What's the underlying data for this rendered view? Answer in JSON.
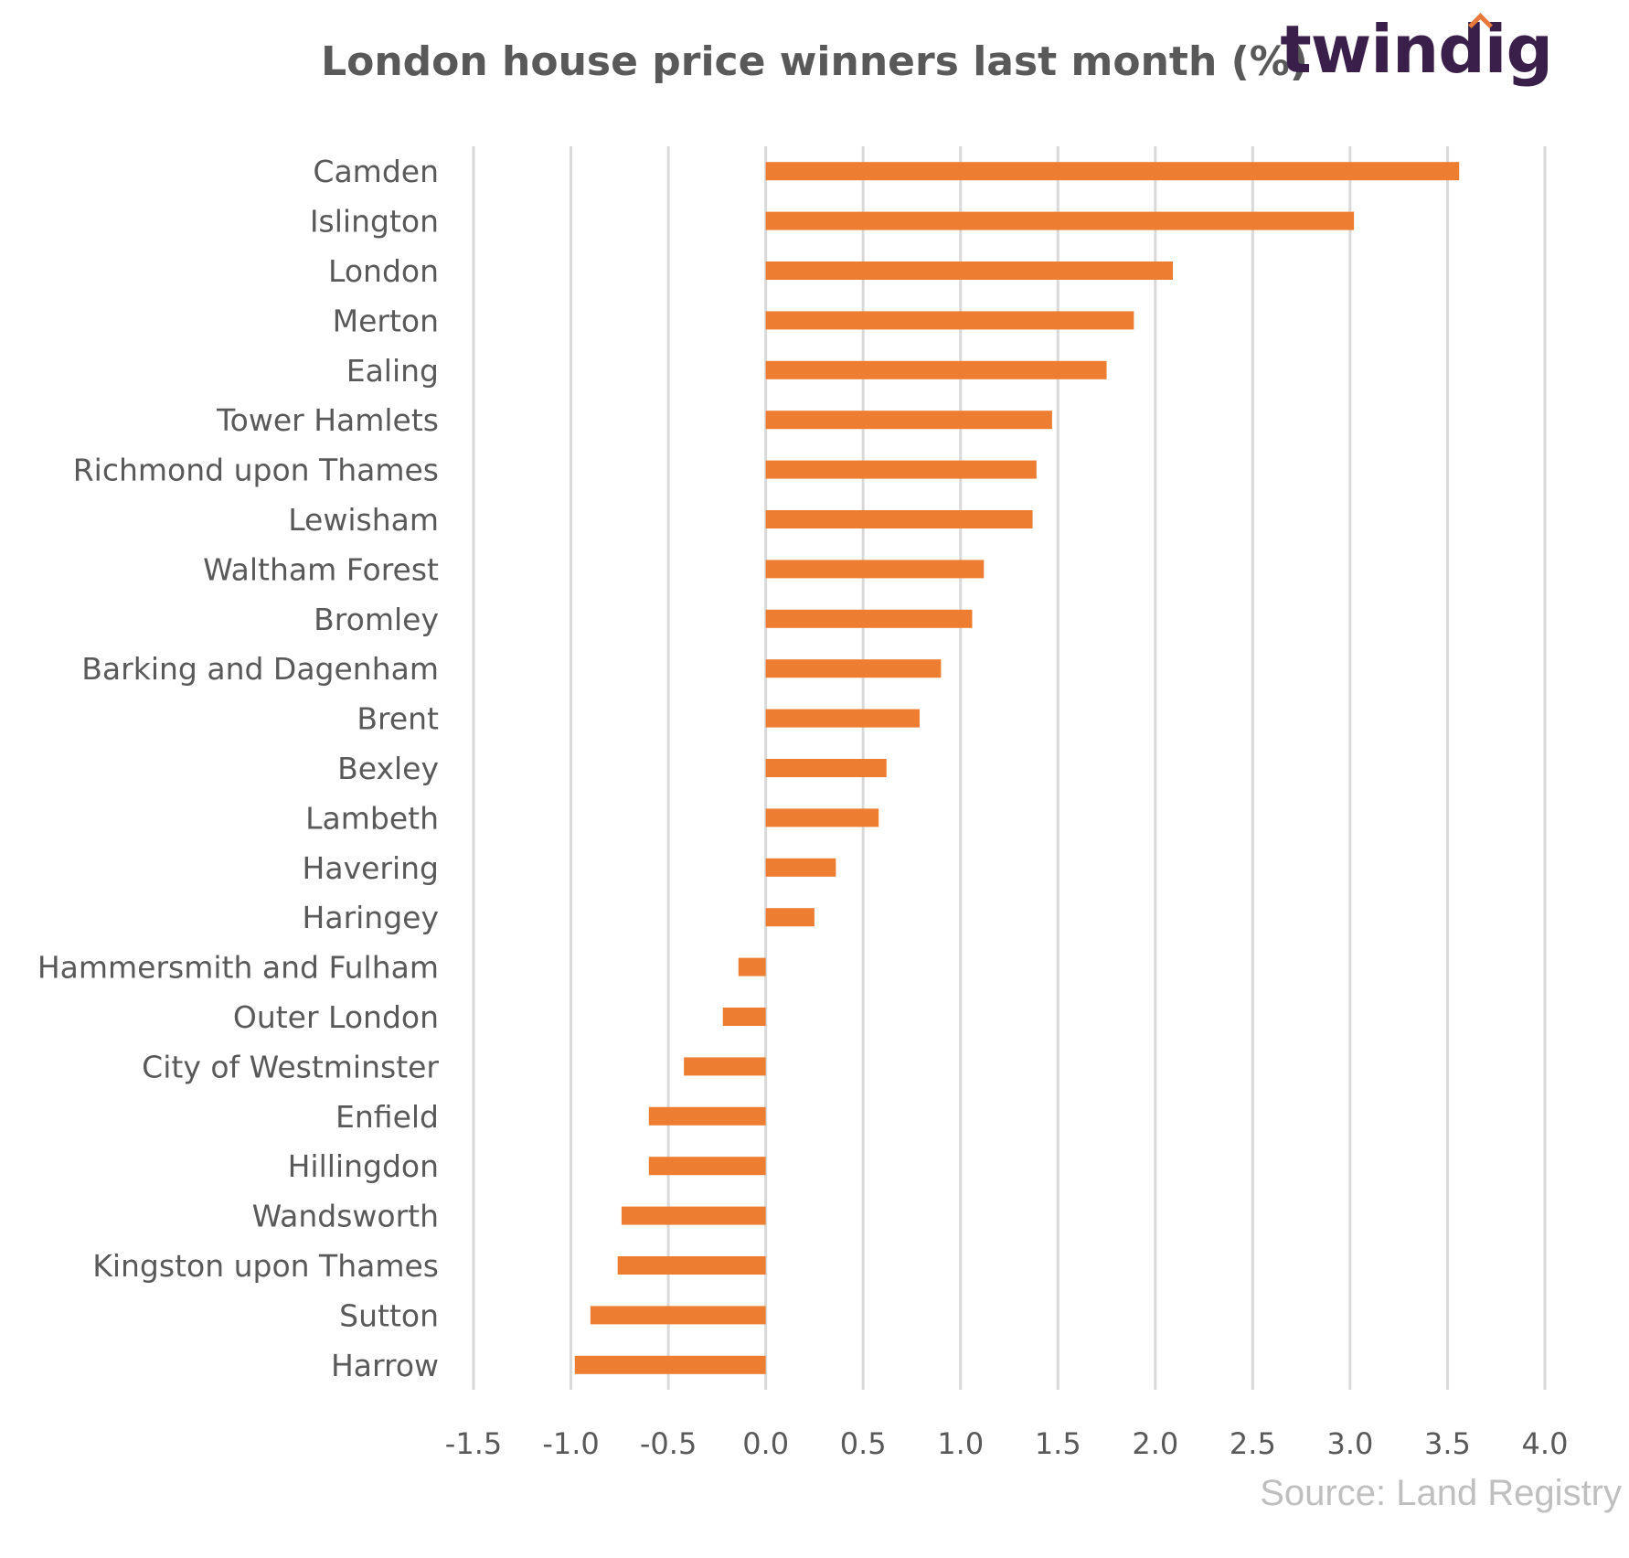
{
  "header": {
    "title": "London house price winners last month (%)",
    "logo": "twindig"
  },
  "footer": {
    "source": "Source: Land Registry"
  },
  "colors": {
    "bar": "#ed7d31",
    "grid": "#d9d9d9",
    "text": "#595959",
    "logo": "#3a1f4a",
    "logo_accent": "#e8793a"
  },
  "chart_data": {
    "type": "bar",
    "orientation": "horizontal",
    "title": "London house price winners last month (%)",
    "xlabel": "",
    "ylabel": "",
    "xlim": [
      -1.5,
      4.0
    ],
    "xticks": [
      "-1.5",
      "-1.0",
      "-0.5",
      "0.0",
      "0.5",
      "1.0",
      "1.5",
      "2.0",
      "2.5",
      "3.0",
      "3.5",
      "4.0"
    ],
    "grid": "vertical",
    "categories": [
      "Camden",
      "Islington",
      "London",
      "Merton",
      "Ealing",
      "Tower Hamlets",
      "Richmond upon Thames",
      "Lewisham",
      "Waltham Forest",
      "Bromley",
      "Barking and Dagenham",
      "Brent",
      "Bexley",
      "Lambeth",
      "Havering",
      "Haringey",
      "Hammersmith and Fulham",
      "Outer London",
      "City of Westminster",
      "Enfield",
      "Hillingdon",
      "Wandsworth",
      "Kingston upon Thames",
      "Sutton",
      "Harrow"
    ],
    "values": [
      3.56,
      3.02,
      2.09,
      1.89,
      1.75,
      1.47,
      1.39,
      1.37,
      1.12,
      1.06,
      0.9,
      0.79,
      0.62,
      0.58,
      0.36,
      0.25,
      -0.14,
      -0.22,
      -0.42,
      -0.6,
      -0.6,
      -0.74,
      -0.76,
      -0.9,
      -0.98
    ]
  }
}
